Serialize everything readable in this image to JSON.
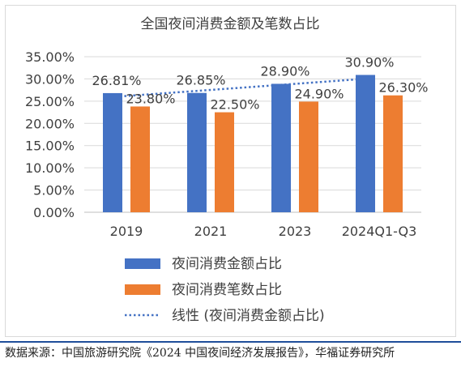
{
  "chart_data": {
    "type": "bar",
    "title": "全国夜间消费金额及笔数占比",
    "categories": [
      "2019",
      "2021",
      "2023",
      "2024Q1-Q3"
    ],
    "series": [
      {
        "name": "夜间消费金额占比",
        "color": "#4472c4",
        "values": [
          26.81,
          26.85,
          28.9,
          30.9
        ],
        "labels": [
          "26.81%",
          "26.85%",
          "28.90%",
          "30.90%"
        ]
      },
      {
        "name": "夜间消费笔数占比",
        "color": "#ed7d31",
        "values": [
          23.8,
          22.5,
          24.9,
          26.3
        ],
        "labels": [
          "23.80%",
          "22.50%",
          "24.90%",
          "26.30%"
        ]
      }
    ],
    "trendline": {
      "name": "线性 (夜间消费金额占比)",
      "color": "#4472c4",
      "style": "dotted",
      "of_series": "夜间消费金额占比"
    },
    "ylim": [
      0,
      35
    ],
    "yticks": [
      "0.00%",
      "5.00%",
      "10.00%",
      "15.00%",
      "20.00%",
      "25.00%",
      "30.00%",
      "35.00%"
    ],
    "grid": true,
    "legend_position": "bottom"
  },
  "source_text": "数据来源：中国旅游研究院《2024 中国夜间经济发展报告》，华福证券研究所"
}
